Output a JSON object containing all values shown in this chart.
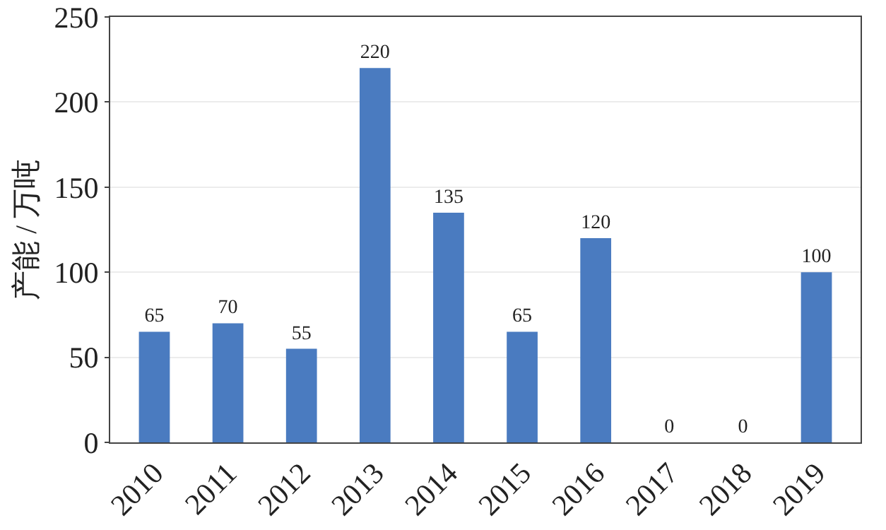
{
  "chart_data": {
    "type": "bar",
    "ylabel": "产能 / 万吨",
    "categories": [
      "2010",
      "2011",
      "2012",
      "2013",
      "2014",
      "2015",
      "2016",
      "2017",
      "2018",
      "2019"
    ],
    "values": [
      65,
      70,
      55,
      220,
      135,
      65,
      120,
      0,
      0,
      100
    ],
    "color": "#4a7bc0",
    "ylim": [
      0,
      250
    ],
    "yticks": [
      0,
      50,
      100,
      150,
      200,
      250
    ],
    "grid": "y",
    "data_labels": true
  }
}
